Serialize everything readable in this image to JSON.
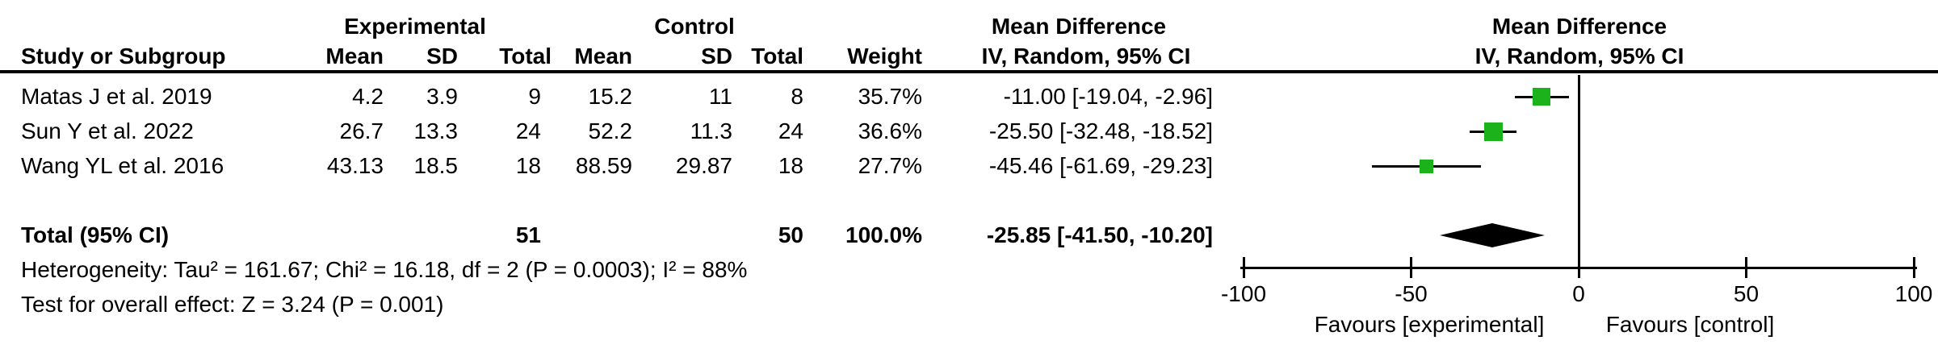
{
  "figure": {
    "header": {
      "group_experimental": "Experimental",
      "group_control": "Control",
      "mean_difference_left": "Mean Difference",
      "mean_difference_right": "Mean Difference",
      "col_study": "Study or Subgroup",
      "col_mean_exp": "Mean",
      "col_sd_exp": "SD",
      "col_total_exp": "Total",
      "col_mean_ctl": "Mean",
      "col_sd_ctl": "SD",
      "col_total_ctl": "Total",
      "col_weight": "Weight",
      "col_ci_left": "IV, Random, 95% CI",
      "col_ci_right": "IV, Random, 95% CI"
    },
    "rows": [
      {
        "study": "Matas J et al. 2019",
        "exp_mean": "4.2",
        "exp_sd": "3.9",
        "exp_total": "9",
        "ctl_mean": "15.2",
        "ctl_sd": "11",
        "ctl_total": "8",
        "weight": "35.7%",
        "ci": "-11.00 [-19.04, -2.96]"
      },
      {
        "study": "Sun Y et al. 2022",
        "exp_mean": "26.7",
        "exp_sd": "13.3",
        "exp_total": "24",
        "ctl_mean": "52.2",
        "ctl_sd": "11.3",
        "ctl_total": "24",
        "weight": "36.6%",
        "ci": "-25.50 [-32.48, -18.52]"
      },
      {
        "study": "Wang YL et al. 2016",
        "exp_mean": "43.13",
        "exp_sd": "18.5",
        "exp_total": "18",
        "ctl_mean": "88.59",
        "ctl_sd": "29.87",
        "ctl_total": "18",
        "weight": "27.7%",
        "ci": "-45.46 [-61.69, -29.23]"
      }
    ],
    "total_row": {
      "label": "Total (95% CI)",
      "exp_total": "51",
      "ctl_total": "50",
      "weight": "100.0%",
      "ci": "-25.85 [-41.50, -10.20]"
    },
    "heterogeneity": "Heterogeneity: Tau² = 161.67; Chi² = 16.18, df = 2 (P = 0.0003); I² = 88%",
    "overall_effect": "Test for overall effect: Z = 3.24 (P = 0.001)"
  },
  "chart_data": {
    "type": "forest",
    "effect_measure": "Mean Difference",
    "method": "IV, Random, 95% CI",
    "x": {
      "min": -100,
      "max": 100,
      "ticks": [
        -100,
        -50,
        0,
        50,
        100
      ],
      "favours_left": "Favours [experimental]",
      "favours_right": "Favours [control]"
    },
    "studies": [
      {
        "label": "Matas J et al. 2019",
        "md": -11.0,
        "ci_low": -19.04,
        "ci_high": -2.96,
        "weight_pct": 35.7
      },
      {
        "label": "Sun Y et al. 2022",
        "md": -25.5,
        "ci_low": -32.48,
        "ci_high": -18.52,
        "weight_pct": 36.6
      },
      {
        "label": "Wang YL et al. 2016",
        "md": -45.46,
        "ci_low": -61.69,
        "ci_high": -29.23,
        "weight_pct": 27.7
      }
    ],
    "total": {
      "label": "Total (95% CI)",
      "md": -25.85,
      "ci_low": -41.5,
      "ci_high": -10.2,
      "weight_pct": 100.0
    },
    "marker_color": "#1CB21C",
    "line_color": "#000000"
  }
}
